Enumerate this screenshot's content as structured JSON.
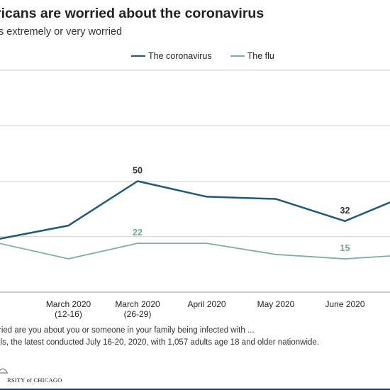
{
  "header": {
    "title": "ricans are worried about the coronavirus",
    "subtitle": "s extremely or very worried"
  },
  "footer": {
    "question": "ried are you about you or someone in your family being infected with ...",
    "source": "lls, the latest conducted July 16-20, 2020, with 1,057 adults age 18 and older nationwide.",
    "logo_text": "RSITY of CHICAGO"
  },
  "colors": {
    "coronavirus": "#1f5a7a",
    "flu": "#7fb09a",
    "grid": "#cfcfcf",
    "coronavirus_label": "#333333",
    "flu_label": "#6ea58b"
  },
  "chart_data": {
    "type": "line",
    "categories": [
      "",
      "March 2020\n(12-16)",
      "March 2020\n(26-29)",
      "April 2020",
      "May 2020",
      "June 2020",
      ""
    ],
    "series": [
      {
        "name": "The coronavirus",
        "values": [
          24,
          30,
          50,
          43,
          42,
          32,
          45
        ],
        "labels": [
          null,
          null,
          "50",
          null,
          null,
          "32",
          null
        ]
      },
      {
        "name": "The flu",
        "values": [
          22,
          15,
          22,
          22,
          17,
          15,
          17
        ],
        "labels": [
          null,
          null,
          "22",
          null,
          null,
          "15",
          null
        ]
      }
    ],
    "ylim": [
      0,
      100
    ],
    "grid": true,
    "legend": "top"
  }
}
